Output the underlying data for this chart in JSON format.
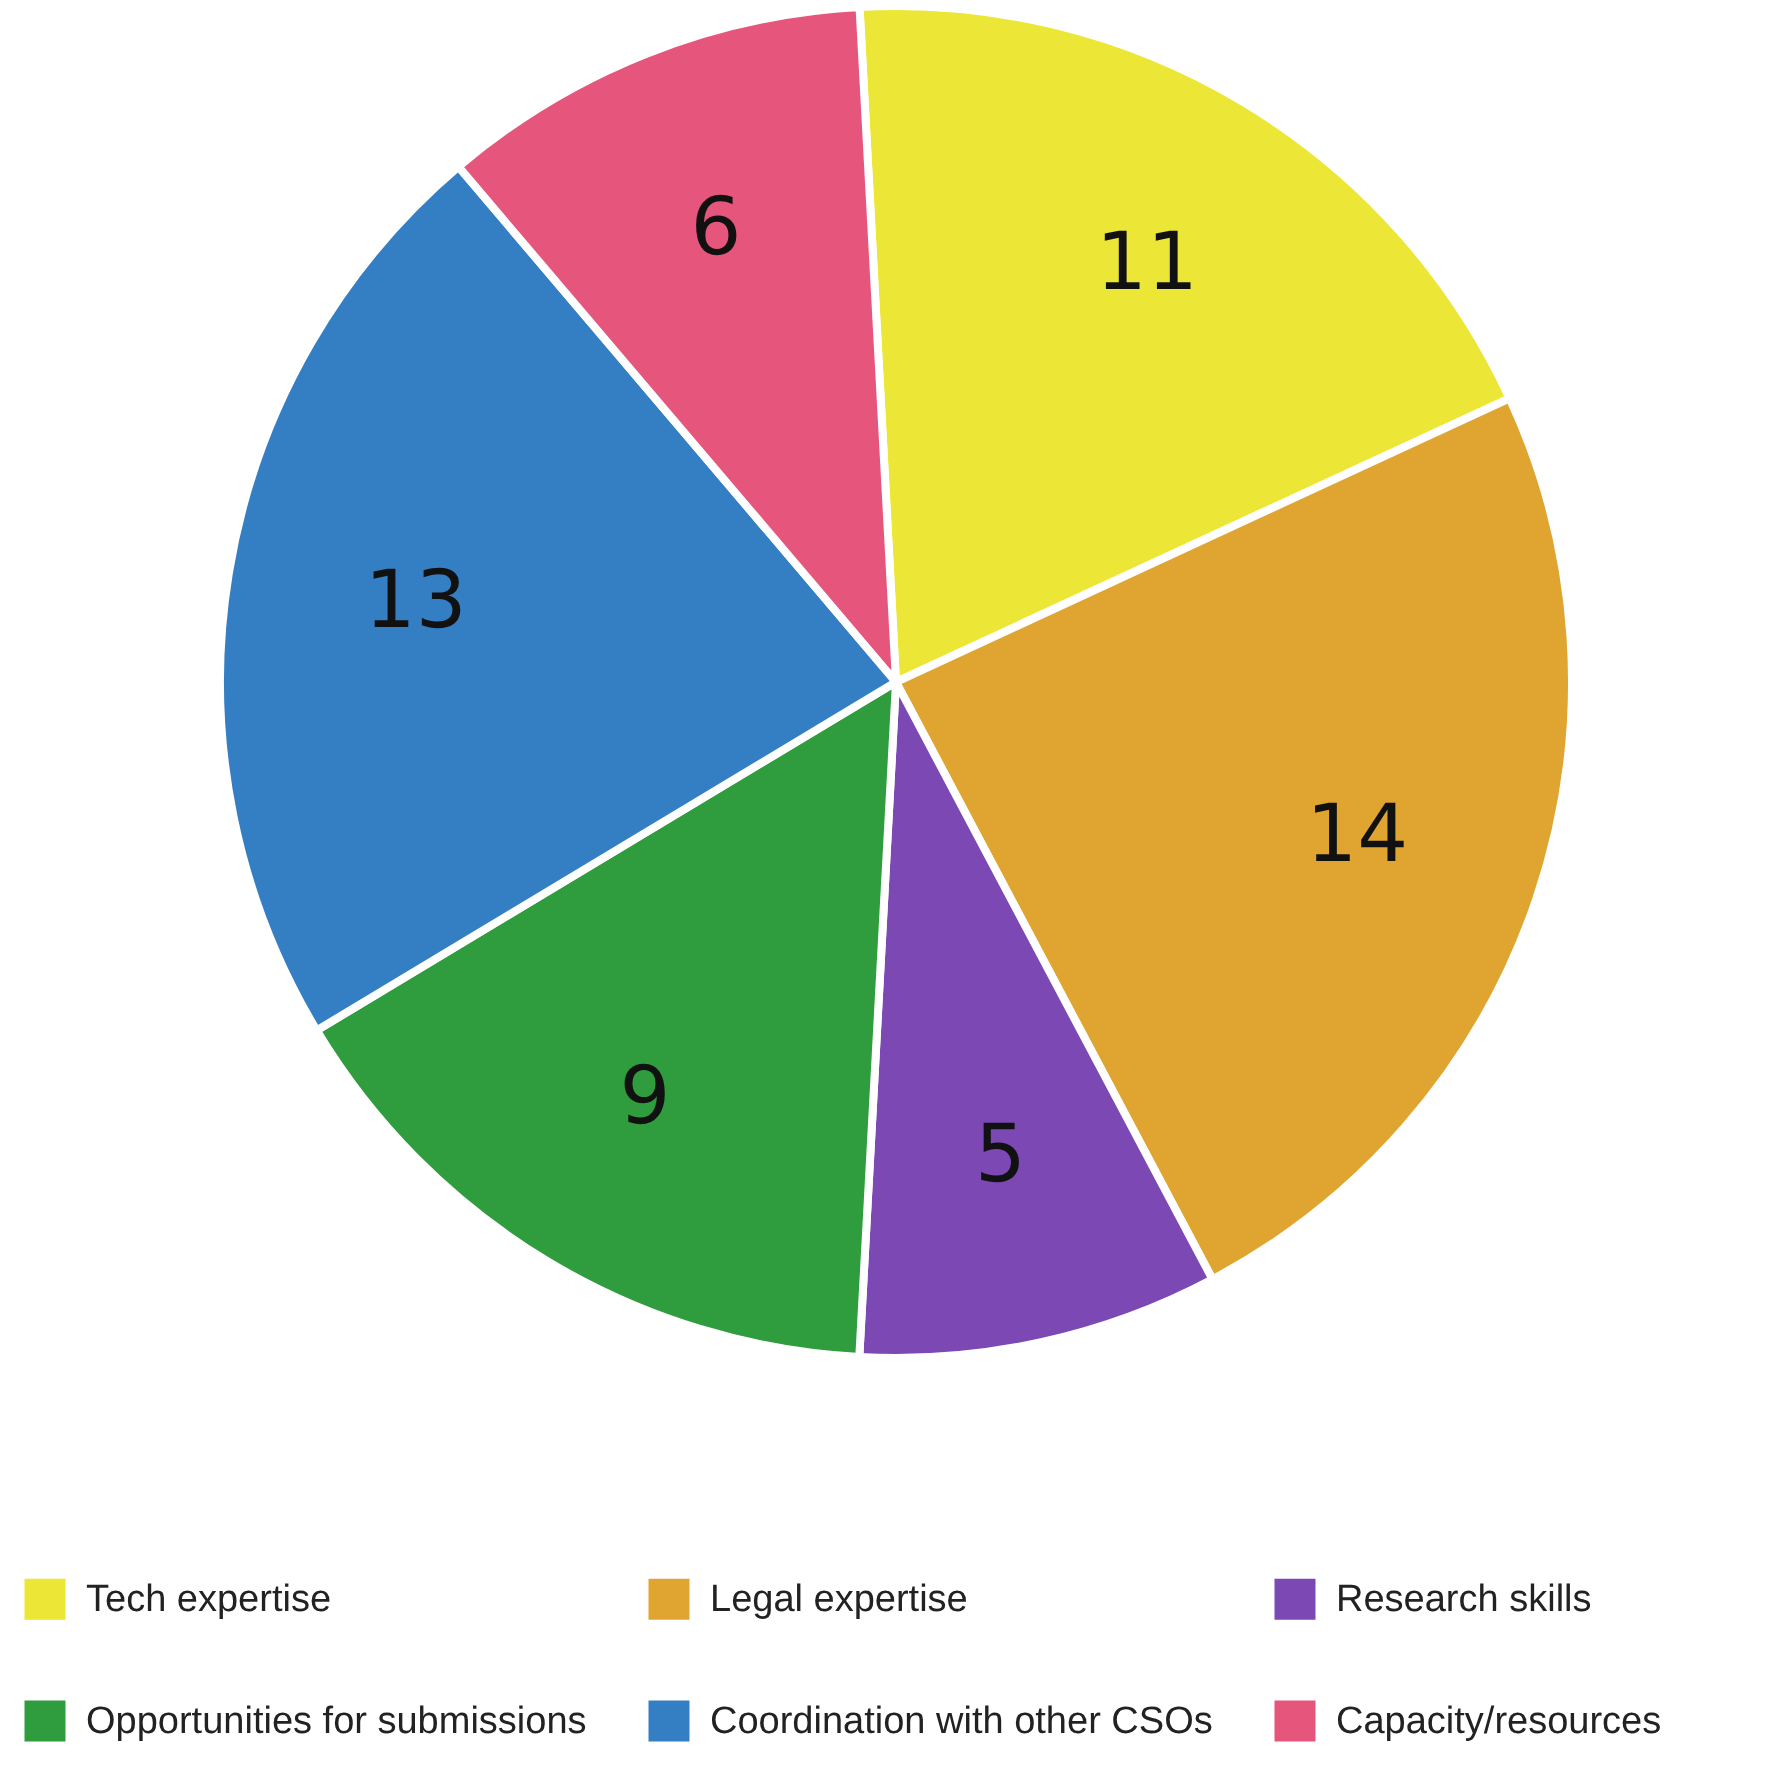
{
  "chart_data": {
    "type": "pie",
    "categories": [
      "Tech expertise",
      "Legal expertise",
      "Research skills",
      "Opportunities for submissions",
      "Coordination with other CSOs",
      "Capacity/resources"
    ],
    "values": [
      11,
      14,
      5,
      9,
      13,
      6
    ],
    "colors": [
      "#ece636",
      "#e0a431",
      "#7b48b4",
      "#2f9c3e",
      "#347fc4",
      "#e6557c"
    ],
    "data_labels": true,
    "legend": "bottom"
  }
}
